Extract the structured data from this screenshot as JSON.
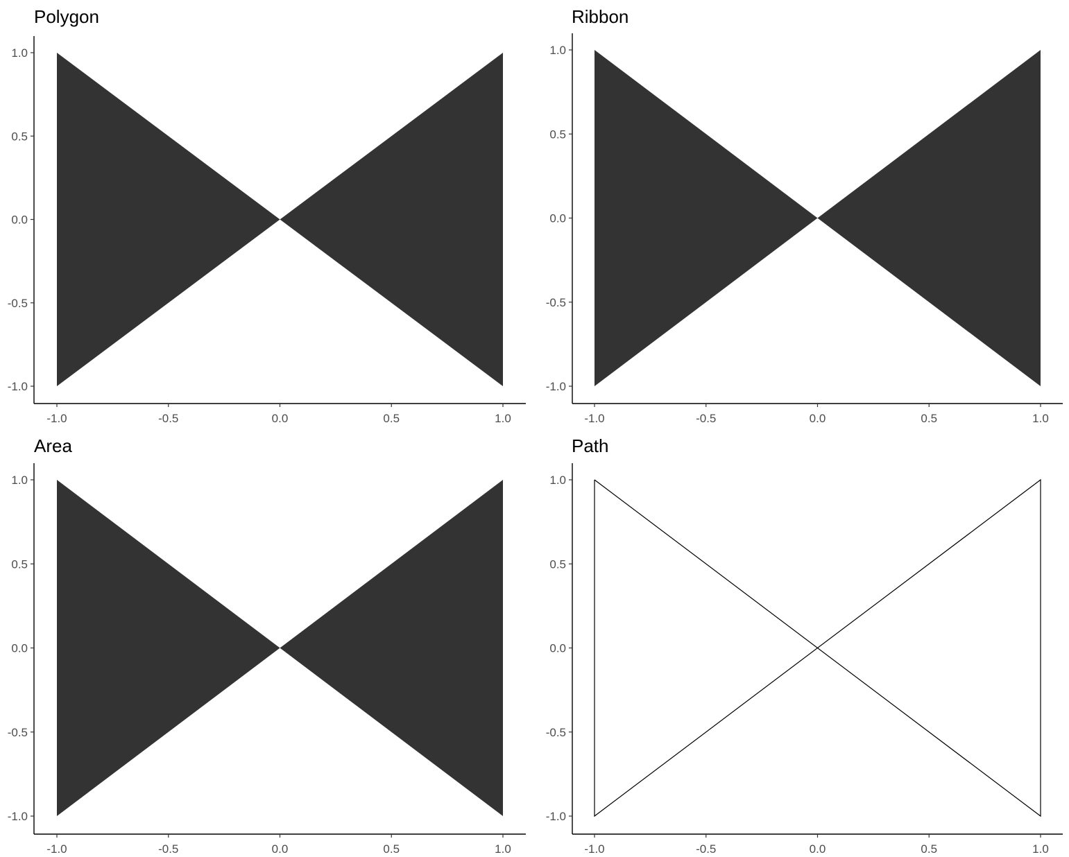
{
  "chart_data": [
    {
      "type": "area",
      "title": "Polygon",
      "xlim": [
        -1.0,
        1.0
      ],
      "ylim": [
        -1.0,
        1.0
      ],
      "x_ticks": [
        "-1.0",
        "-0.5",
        "0.0",
        "0.5",
        "1.0"
      ],
      "y_ticks": [
        "-1.0",
        "-0.5",
        "0.0",
        "0.5",
        "1.0"
      ],
      "fill": "#333333",
      "geometry": "filled",
      "x": [
        -1.0,
        1.0,
        1.0,
        -1.0
      ],
      "y": [
        1.0,
        -1.0,
        1.0,
        -1.0
      ]
    },
    {
      "type": "area",
      "title": "Ribbon",
      "xlim": [
        -1.0,
        1.0
      ],
      "ylim": [
        -1.0,
        1.0
      ],
      "x_ticks": [
        "-1.0",
        "-0.5",
        "0.0",
        "0.5",
        "1.0"
      ],
      "y_ticks": [
        "-1.0",
        "-0.5",
        "0.0",
        "0.5",
        "1.0"
      ],
      "fill": "#333333",
      "geometry": "filled",
      "x": [
        -1.0,
        1.0,
        1.0,
        -1.0
      ],
      "y": [
        1.0,
        -1.0,
        1.0,
        -1.0
      ]
    },
    {
      "type": "area",
      "title": "Area",
      "xlim": [
        -1.0,
        1.0
      ],
      "ylim": [
        -1.0,
        1.0
      ],
      "x_ticks": [
        "-1.0",
        "-0.5",
        "0.0",
        "0.5",
        "1.0"
      ],
      "y_ticks": [
        "-1.0",
        "-0.5",
        "0.0",
        "0.5",
        "1.0"
      ],
      "fill": "#333333",
      "geometry": "filled",
      "x": [
        -1.0,
        1.0,
        1.0,
        -1.0
      ],
      "y": [
        1.0,
        -1.0,
        1.0,
        -1.0
      ]
    },
    {
      "type": "line",
      "title": "Path",
      "xlim": [
        -1.0,
        1.0
      ],
      "ylim": [
        -1.0,
        1.0
      ],
      "x_ticks": [
        "-1.0",
        "-0.5",
        "0.0",
        "0.5",
        "1.0"
      ],
      "y_ticks": [
        "-1.0",
        "-0.5",
        "0.0",
        "0.5",
        "1.0"
      ],
      "stroke": "#000000",
      "geometry": "outline",
      "x": [
        -1.0,
        1.0,
        1.0,
        -1.0,
        -1.0
      ],
      "y": [
        1.0,
        -1.0,
        1.0,
        -1.0,
        1.0
      ]
    }
  ]
}
